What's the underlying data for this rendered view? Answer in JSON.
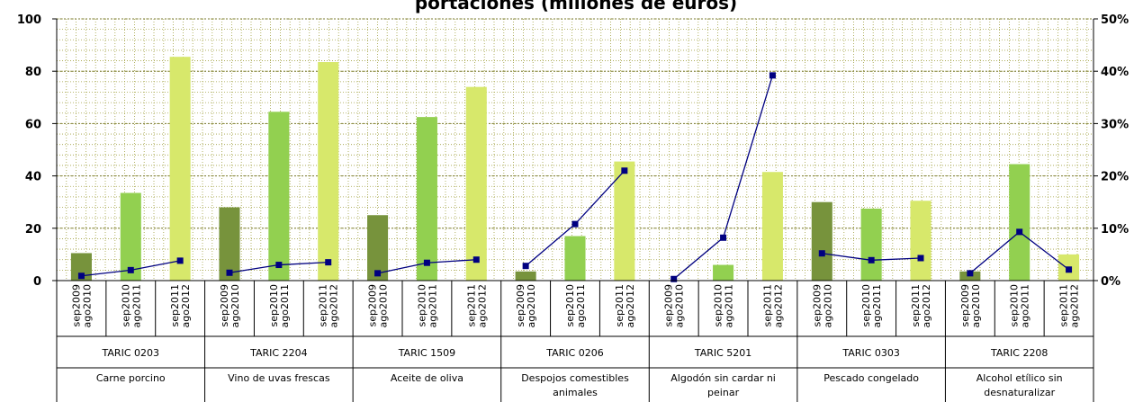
{
  "chart_data": {
    "type": "bar",
    "title": "portaciones (millones de euros)",
    "period_labels": [
      "sep2009 ago2010",
      "sep2010 ago2011",
      "sep2011 ago2012"
    ],
    "groups": [
      {
        "code": "TARIC 0203",
        "name_lines": [
          "Carne porcino"
        ],
        "values": [
          10.5,
          33.5,
          85.5
        ],
        "pct": [
          0.9,
          2.0,
          3.8
        ]
      },
      {
        "code": "TARIC 2204",
        "name_lines": [
          "Vino de uvas frescas"
        ],
        "values": [
          28,
          64.5,
          83.5
        ],
        "pct": [
          1.5,
          3.0,
          3.5
        ]
      },
      {
        "code": "TARIC 1509",
        "name_lines": [
          "Aceite de oliva"
        ],
        "values": [
          25,
          62.5,
          74
        ],
        "pct": [
          1.4,
          3.4,
          4.0
        ]
      },
      {
        "code": "TARIC 0206",
        "name_lines": [
          "Despojos comestibles",
          "animales"
        ],
        "values": [
          3.5,
          17,
          45.5
        ],
        "pct": [
          2.8,
          10.8,
          21.0
        ]
      },
      {
        "code": "TARIC 5201",
        "name_lines": [
          "Algodón sin cardar ni",
          "peinar"
        ],
        "values": [
          0,
          6,
          41.5
        ],
        "pct": [
          0.3,
          8.2,
          39.2
        ]
      },
      {
        "code": "TARIC 0303",
        "name_lines": [
          "Pescado congelado"
        ],
        "values": [
          30,
          27.5,
          30.5
        ],
        "pct": [
          5.2,
          3.9,
          4.3
        ]
      },
      {
        "code": "TARIC 2208",
        "name_lines": [
          "Alcohol etílico sin",
          "desnaturalizar"
        ],
        "values": [
          3.5,
          44.5,
          10
        ],
        "pct": [
          1.4,
          9.3,
          2.1
        ]
      }
    ],
    "y_left": {
      "min": 0,
      "max": 100,
      "step": 20,
      "ticks": [
        "0",
        "20",
        "40",
        "60",
        "80",
        "100"
      ]
    },
    "y_right": {
      "min": 0,
      "max": 50,
      "step": 10,
      "ticks": [
        "0%",
        "10%",
        "20%",
        "30%",
        "40%",
        "50%"
      ]
    },
    "grid": true,
    "colors": {
      "bars": [
        "#77933c",
        "#92d050",
        "#d7e86b"
      ],
      "line": "#000080",
      "marker": "#000080",
      "grid": "#a0a040"
    }
  }
}
